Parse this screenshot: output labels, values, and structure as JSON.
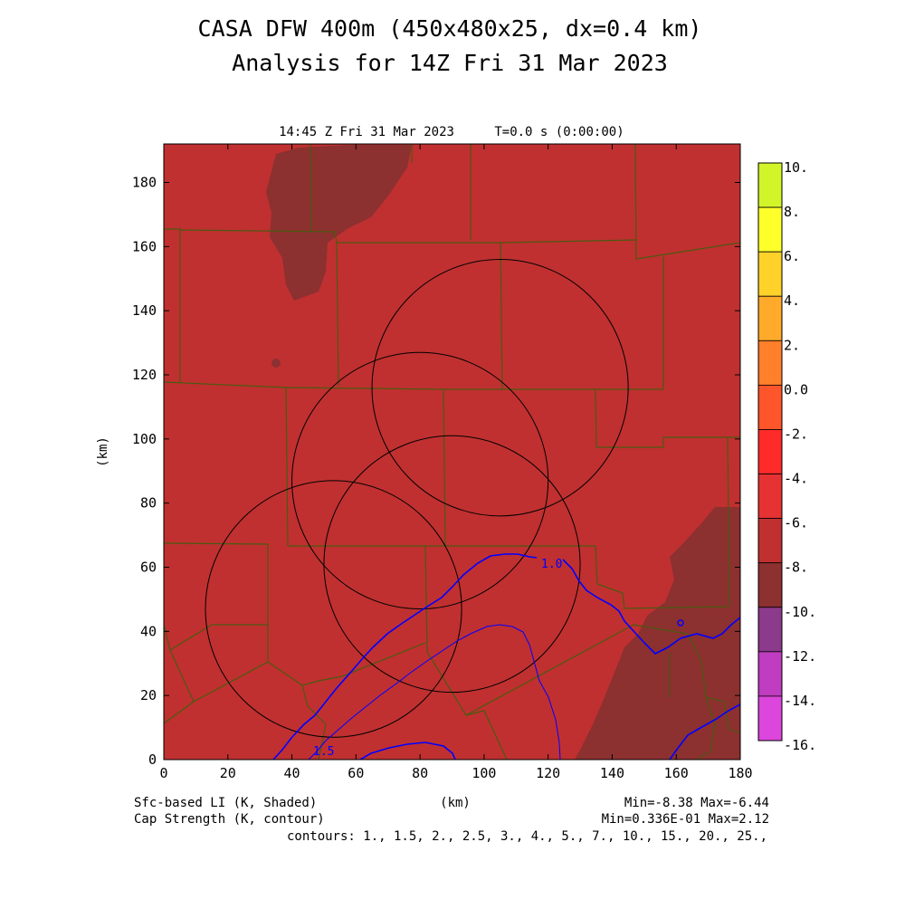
{
  "header": {
    "title_line1": "CASA DFW 400m (450x480x25, dx=0.4 km)",
    "title_line2": "Analysis for 14Z Fri 31 Mar 2023",
    "valid_time": "14:45 Z Fri 31 Mar 2023",
    "model_time": "T=0.0 s (0:00:00)"
  },
  "axes": {
    "x_label": "(km)",
    "y_label": "(km)",
    "x_range": [
      0,
      180
    ],
    "y_range": [
      0,
      192
    ],
    "x_ticks": [
      "0",
      "20",
      "40",
      "60",
      "80",
      "100",
      "120",
      "140",
      "160",
      "180"
    ],
    "y_ticks": [
      "0",
      "20",
      "40",
      "60",
      "80",
      "100",
      "120",
      "140",
      "160",
      "180"
    ]
  },
  "colorbar": {
    "labels": [
      "10.",
      "8.",
      "6.",
      "4.",
      "2.",
      "0.0",
      "-2.",
      "-4.",
      "-6.",
      "-8.",
      "-10.",
      "-12.",
      "-14.",
      "-16."
    ],
    "colors": [
      "#a6e22a",
      "#d2f52a",
      "#ffff2a",
      "#ffd22a",
      "#ffaa2a",
      "#ff7f2a",
      "#ff552a",
      "#ff2a2a",
      "#e63232",
      "#c03030",
      "#8c3030",
      "#8c3a8c",
      "#c03cc0",
      "#dc46dc"
    ]
  },
  "map": {
    "shade_main_color": "#c03030",
    "shade_dark_color": "#8c3030",
    "county_line_color": "#4a5a10",
    "contour_color": "#0000ff",
    "radar_ring_color": "#000000",
    "radar_sites_km": [
      {
        "x": 105,
        "y": 116,
        "r": 40
      },
      {
        "x": 80,
        "y": 87,
        "r": 40
      },
      {
        "x": 90,
        "y": 61,
        "r": 40
      },
      {
        "x": 53,
        "y": 47,
        "r": 40
      }
    ],
    "contour_labels": [
      "1.0",
      "1.5"
    ]
  },
  "footer": {
    "left1": "Sfc-based LI (K, Shaded)",
    "left2": "Cap Strength (K, contour)",
    "center": "(km)",
    "right1": "Min=-8.38 Max=-6.44",
    "right2": "Min=0.336E-01 Max=2.12",
    "contours": "contours: 1., 1.5, 2., 2.5, 3., 4., 5., 7., 10., 15., 20., 25.,"
  }
}
